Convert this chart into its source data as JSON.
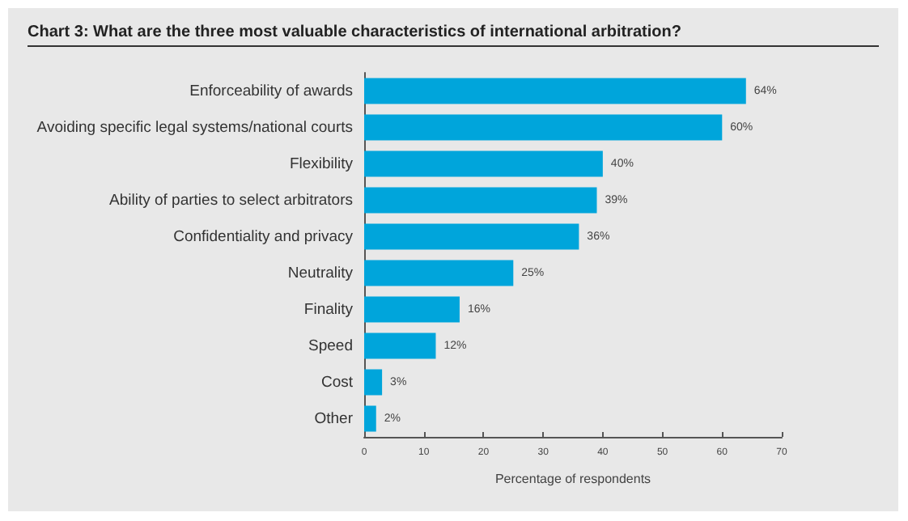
{
  "chart_data": {
    "type": "bar",
    "orientation": "horizontal",
    "title": "Chart 3: What are the three most valuable characteristics of international arbitration?",
    "xlabel": "Percentage of respondents",
    "categories": [
      "Enforceability of awards",
      "Avoiding specific legal systems/national courts",
      "Flexibility",
      "Ability of parties to select arbitrators",
      "Confidentiality and privacy",
      "Neutrality",
      "Finality",
      "Speed",
      "Cost",
      "Other"
    ],
    "values": [
      64,
      60,
      40,
      39,
      36,
      25,
      16,
      12,
      3,
      2
    ],
    "value_labels": [
      "64%",
      "60%",
      "40%",
      "39%",
      "36%",
      "25%",
      "16%",
      "12%",
      "3%",
      "2%"
    ],
    "color": "#00a5db",
    "xlim": [
      0,
      70
    ],
    "xticks": [
      0,
      10,
      20,
      30,
      40,
      50,
      60,
      70
    ]
  }
}
